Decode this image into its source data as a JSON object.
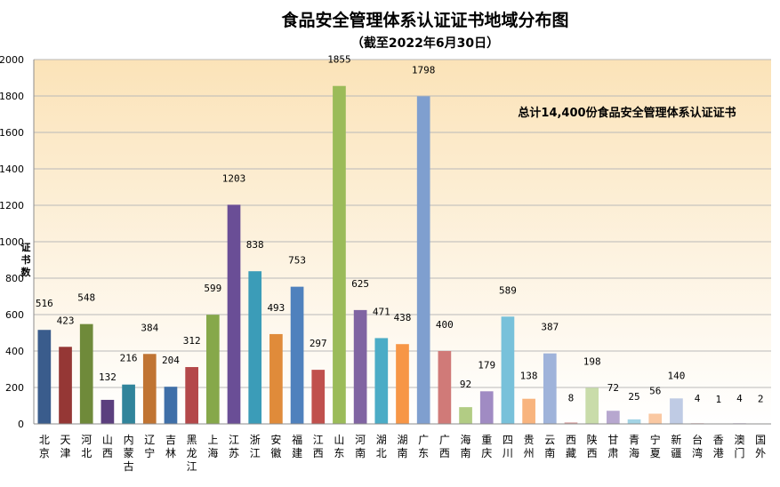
{
  "chart_data": {
    "type": "bar",
    "title": "食品安全管理体系认证证书地域分布图",
    "subtitle": "（截至2022年6月30日）",
    "annotation": "总计14,400份食品安全管理体系认证证书",
    "ylabel": "证书数",
    "xlabel": "",
    "ylim": [
      0,
      2000
    ],
    "yticks": [
      0,
      200,
      400,
      600,
      800,
      1000,
      1200,
      1400,
      1600,
      1800,
      2000
    ],
    "grid": true,
    "legend": "none",
    "categories": [
      "北京",
      "天津",
      "河北",
      "山西",
      "内蒙古",
      "辽宁",
      "吉林",
      "黑龙江",
      "上海",
      "江苏",
      "浙江",
      "安徽",
      "福建",
      "江西",
      "山东",
      "河南",
      "湖北",
      "湖南",
      "广东",
      "广西",
      "海南",
      "重庆",
      "四川",
      "贵州",
      "云南",
      "西藏",
      "陕西",
      "甘肃",
      "青海",
      "宁夏",
      "新疆",
      "台湾",
      "香港",
      "澳门",
      "国外"
    ],
    "values": [
      516,
      423,
      548,
      132,
      216,
      384,
      204,
      312,
      599,
      1203,
      838,
      493,
      753,
      297,
      1855,
      625,
      471,
      438,
      1798,
      400,
      92,
      179,
      589,
      138,
      387,
      8,
      198,
      72,
      25,
      56,
      140,
      4,
      1,
      4,
      2
    ],
    "colors": [
      "#3a5c8c",
      "#953735",
      "#6f8a3a",
      "#5b3f7e",
      "#31849b",
      "#c07433",
      "#3f6fa8",
      "#b4484a",
      "#86a84a",
      "#6a4e96",
      "#3b9cb8",
      "#e08b3a",
      "#4f81bd",
      "#c0504d",
      "#9bbb59",
      "#8064a2",
      "#4bacc6",
      "#f79646",
      "#7f9fcf",
      "#d07a78",
      "#b2cc84",
      "#a08bc3",
      "#78c1da",
      "#f8b47e",
      "#9fb3da",
      "#d9a09e",
      "#c9dcaa",
      "#b7a7cf",
      "#a3d4e5",
      "#fac8a2",
      "#bfcbe4",
      "#e8c4c3",
      "#dde8c9",
      "#d4cbe2",
      "#c7e6ef"
    ]
  }
}
